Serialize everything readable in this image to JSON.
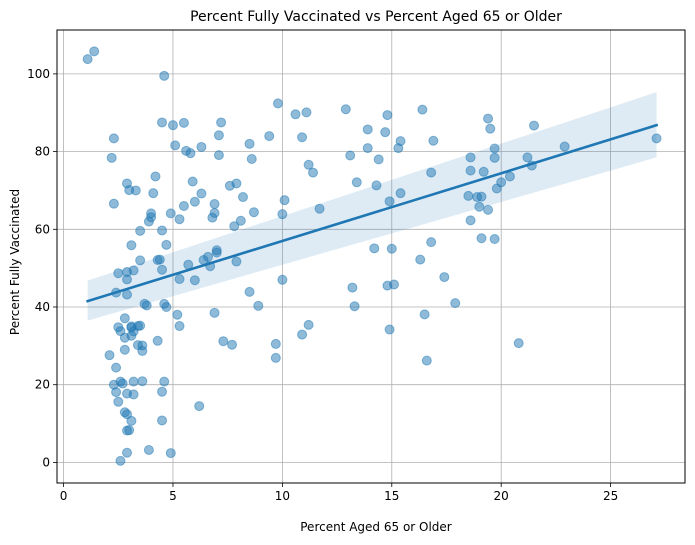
{
  "chart_data": {
    "type": "scatter",
    "title": "Percent Fully Vaccinated vs Percent Aged 65 or Older",
    "xlabel": "Percent Aged 65 or Older",
    "ylabel": "Percent Fully Vaccinated",
    "xlim": [
      -0.3,
      28.4
    ],
    "ylim": [
      -5.3,
      111.3
    ],
    "xticks": [
      0,
      5,
      10,
      15,
      20,
      25
    ],
    "yticks": [
      0,
      20,
      40,
      60,
      80,
      100
    ],
    "grid": true,
    "point_color": "#1f77b4",
    "regression": {
      "x": [
        1.1,
        27.1
      ],
      "y": [
        41.5,
        86.8
      ],
      "ci_lower": [
        36.5,
        78.5
      ],
      "ci_upper": [
        46.8,
        95.3
      ]
    },
    "points": [
      [
        1.1,
        103.8
      ],
      [
        1.4,
        105.8
      ],
      [
        4.6,
        99.5
      ],
      [
        2.3,
        83.4
      ],
      [
        2.2,
        78.4
      ],
      [
        2.3,
        66.6
      ],
      [
        2.1,
        27.6
      ],
      [
        2.3,
        20.0
      ],
      [
        2.4,
        24.4
      ],
      [
        2.4,
        18.1
      ],
      [
        2.5,
        15.6
      ],
      [
        2.4,
        43.7
      ],
      [
        2.5,
        48.7
      ],
      [
        2.5,
        34.8
      ],
      [
        2.6,
        33.8
      ],
      [
        2.6,
        20.8
      ],
      [
        2.6,
        0.4
      ],
      [
        2.7,
        20.3
      ],
      [
        2.8,
        37.1
      ],
      [
        2.8,
        32.1
      ],
      [
        2.8,
        29.0
      ],
      [
        2.9,
        71.8
      ],
      [
        3.0,
        70.1
      ],
      [
        2.9,
        49.0
      ],
      [
        2.9,
        47.1
      ],
      [
        2.9,
        43.2
      ],
      [
        2.9,
        17.7
      ],
      [
        2.8,
        12.9
      ],
      [
        2.9,
        12.4
      ],
      [
        2.9,
        8.2
      ],
      [
        3.0,
        8.3
      ],
      [
        2.9,
        2.5
      ],
      [
        3.1,
        34.7
      ],
      [
        3.1,
        35.0
      ],
      [
        3.1,
        55.9
      ],
      [
        3.2,
        49.4
      ],
      [
        3.3,
        70.0
      ],
      [
        3.2,
        33.7
      ],
      [
        3.1,
        32.6
      ],
      [
        3.2,
        20.8
      ],
      [
        3.2,
        17.5
      ],
      [
        3.1,
        10.7
      ],
      [
        3.4,
        35.1
      ],
      [
        3.5,
        35.2
      ],
      [
        3.4,
        30.2
      ],
      [
        3.6,
        30.1
      ],
      [
        3.5,
        52.0
      ],
      [
        3.5,
        59.6
      ],
      [
        3.6,
        28.7
      ],
      [
        3.6,
        20.9
      ],
      [
        3.7,
        40.8
      ],
      [
        3.8,
        40.4
      ],
      [
        3.9,
        3.2
      ],
      [
        3.9,
        62.0
      ],
      [
        4.0,
        63.1
      ],
      [
        4.0,
        64.1
      ],
      [
        4.1,
        69.3
      ],
      [
        4.2,
        73.6
      ],
      [
        4.3,
        31.3
      ],
      [
        4.3,
        52.1
      ],
      [
        4.4,
        52.2
      ],
      [
        4.5,
        49.6
      ],
      [
        4.5,
        59.7
      ],
      [
        4.5,
        87.5
      ],
      [
        4.5,
        18.2
      ],
      [
        4.5,
        10.8
      ],
      [
        4.6,
        20.8
      ],
      [
        4.6,
        40.8
      ],
      [
        4.7,
        56.0
      ],
      [
        4.7,
        40.0
      ],
      [
        4.9,
        64.1
      ],
      [
        4.9,
        2.4
      ],
      [
        5.0,
        86.8
      ],
      [
        5.1,
        81.6
      ],
      [
        5.2,
        38.0
      ],
      [
        5.3,
        35.1
      ],
      [
        5.3,
        47.2
      ],
      [
        5.3,
        62.6
      ],
      [
        5.5,
        66.0
      ],
      [
        5.5,
        87.4
      ],
      [
        5.6,
        80.2
      ],
      [
        5.7,
        50.9
      ],
      [
        5.8,
        79.6
      ],
      [
        5.9,
        72.3
      ],
      [
        6.0,
        67.1
      ],
      [
        6.0,
        46.9
      ],
      [
        6.2,
        14.5
      ],
      [
        6.3,
        81.2
      ],
      [
        6.3,
        69.2
      ],
      [
        6.4,
        52.1
      ],
      [
        6.6,
        52.9
      ],
      [
        6.7,
        50.5
      ],
      [
        6.8,
        63.0
      ],
      [
        6.9,
        64.2
      ],
      [
        6.9,
        66.5
      ],
      [
        6.9,
        38.5
      ],
      [
        7.0,
        54.6
      ],
      [
        7.0,
        54.0
      ],
      [
        7.1,
        79.1
      ],
      [
        7.1,
        84.2
      ],
      [
        7.2,
        87.5
      ],
      [
        7.3,
        31.2
      ],
      [
        7.6,
        71.2
      ],
      [
        7.7,
        30.3
      ],
      [
        7.8,
        60.8
      ],
      [
        7.9,
        51.7
      ],
      [
        7.9,
        71.8
      ],
      [
        8.1,
        62.2
      ],
      [
        8.2,
        68.3
      ],
      [
        8.5,
        43.9
      ],
      [
        8.5,
        82.0
      ],
      [
        8.6,
        78.1
      ],
      [
        8.7,
        64.4
      ],
      [
        8.9,
        40.3
      ],
      [
        9.4,
        84.0
      ],
      [
        9.7,
        26.9
      ],
      [
        9.7,
        30.5
      ],
      [
        9.8,
        92.4
      ],
      [
        10.0,
        63.9
      ],
      [
        10.0,
        47.0
      ],
      [
        10.1,
        67.5
      ],
      [
        10.6,
        89.6
      ],
      [
        10.9,
        32.9
      ],
      [
        10.9,
        83.7
      ],
      [
        11.1,
        90.1
      ],
      [
        11.2,
        76.6
      ],
      [
        11.2,
        35.4
      ],
      [
        11.4,
        74.6
      ],
      [
        11.7,
        65.3
      ],
      [
        12.9,
        90.9
      ],
      [
        13.1,
        79.0
      ],
      [
        13.2,
        45.0
      ],
      [
        13.3,
        40.2
      ],
      [
        13.4,
        72.1
      ],
      [
        13.9,
        80.9
      ],
      [
        13.9,
        85.7
      ],
      [
        14.2,
        55.1
      ],
      [
        14.3,
        71.3
      ],
      [
        14.4,
        78.0
      ],
      [
        14.7,
        85.0
      ],
      [
        14.8,
        89.4
      ],
      [
        14.8,
        45.5
      ],
      [
        14.9,
        67.2
      ],
      [
        14.9,
        34.2
      ],
      [
        15.0,
        55.0
      ],
      [
        15.1,
        45.8
      ],
      [
        15.3,
        80.9
      ],
      [
        15.4,
        82.7
      ],
      [
        15.4,
        69.3
      ],
      [
        16.3,
        52.2
      ],
      [
        16.4,
        90.8
      ],
      [
        16.5,
        38.1
      ],
      [
        16.6,
        26.2
      ],
      [
        16.8,
        56.7
      ],
      [
        16.8,
        74.6
      ],
      [
        16.9,
        82.8
      ],
      [
        17.4,
        47.7
      ],
      [
        17.9,
        41.0
      ],
      [
        18.5,
        68.6
      ],
      [
        18.6,
        62.3
      ],
      [
        18.6,
        75.1
      ],
      [
        18.6,
        78.5
      ],
      [
        18.9,
        68.3
      ],
      [
        19.0,
        65.8
      ],
      [
        19.1,
        68.4
      ],
      [
        19.1,
        57.7
      ],
      [
        19.2,
        74.8
      ],
      [
        19.4,
        65.0
      ],
      [
        19.4,
        88.5
      ],
      [
        19.5,
        85.9
      ],
      [
        19.7,
        80.8
      ],
      [
        19.7,
        78.4
      ],
      [
        19.7,
        57.5
      ],
      [
        19.8,
        70.5
      ],
      [
        20.0,
        72.1
      ],
      [
        20.4,
        73.6
      ],
      [
        20.8,
        30.7
      ],
      [
        21.2,
        78.5
      ],
      [
        21.4,
        76.4
      ],
      [
        21.5,
        86.7
      ],
      [
        22.9,
        81.3
      ],
      [
        27.1,
        83.4
      ]
    ]
  }
}
